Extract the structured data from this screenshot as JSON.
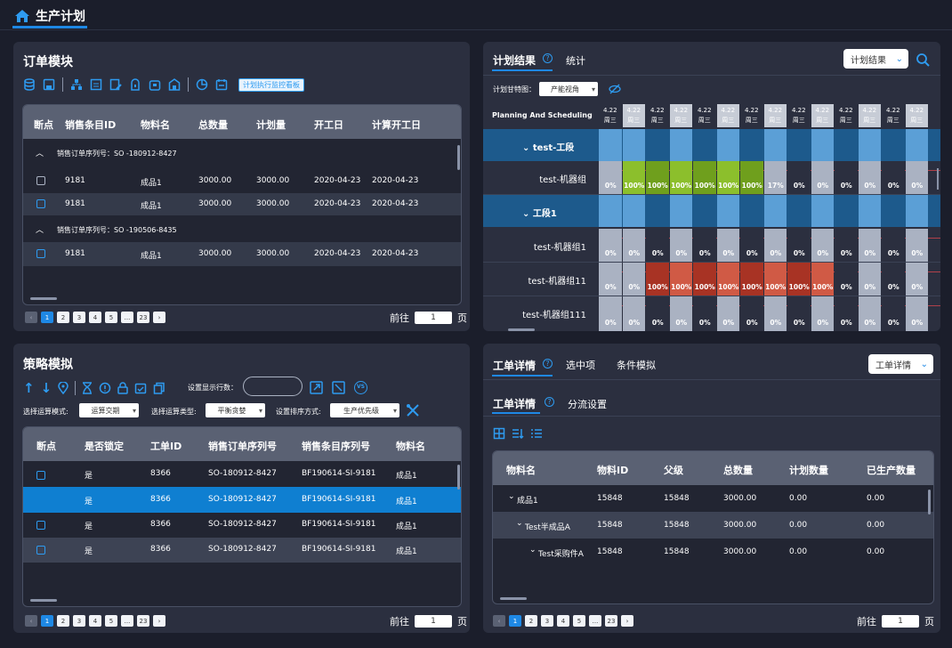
{
  "header": {
    "title": "生产计划"
  },
  "order": {
    "title": "订单模块",
    "monitor_button": "计划执行监控看板",
    "columns": [
      "断点",
      "销售条目ID",
      "物料名",
      "总数量",
      "计划量",
      "开工日",
      "计算开工日"
    ],
    "group1": "销售订单序列号：SO -180912-8427",
    "group2": "销售订单序列号：SO -190506-8435",
    "rows": [
      {
        "id": "9181",
        "mat": "成品1",
        "total": "3000.00",
        "plan": "3000.00",
        "start": "2020-04-23",
        "calc": "2020-04-23"
      },
      {
        "id": "9181",
        "mat": "成品1",
        "total": "3000.00",
        "plan": "3000.00",
        "start": "2020-04-23",
        "calc": "2020-04-23"
      },
      {
        "id": "9181",
        "mat": "成品1",
        "total": "3000.00",
        "plan": "3000.00",
        "start": "2020-04-23",
        "calc": "2020-04-23"
      }
    ],
    "pages": [
      "1",
      "2",
      "3",
      "4",
      "5",
      "...",
      "23"
    ],
    "goto_label": "前往",
    "goto_value": "1",
    "page_unit": "页"
  },
  "plan": {
    "tab1": "计划结果",
    "tab2": "统计",
    "dropdown": "计划结果",
    "gantt_label": "计划甘特图：",
    "gantt_select": "产能视角",
    "scheduling_label": "Planning And Scheduling",
    "date": "4.22",
    "weekday": "周三",
    "groups": [
      "test-工段",
      "工段1"
    ],
    "rows": [
      {
        "name": "test-机器组",
        "vals": [
          "0%",
          "100%",
          "100%",
          "100%",
          "100%",
          "100%",
          "100%",
          "17%",
          "0%",
          "0%",
          "0%",
          "0%",
          "0%",
          "0%"
        ]
      },
      {
        "name": "test-机器组1",
        "vals": [
          "0%",
          "0%",
          "0%",
          "0%",
          "0%",
          "0%",
          "0%",
          "0%",
          "0%",
          "0%",
          "0%",
          "0%",
          "0%",
          "0%"
        ]
      },
      {
        "name": "test-机器组11",
        "vals": [
          "0%",
          "0%",
          "100%",
          "100%",
          "100%",
          "100%",
          "100%",
          "100%",
          "100%",
          "100%",
          "0%",
          "0%",
          "0%",
          "0%"
        ]
      },
      {
        "name": "test-机器组111",
        "vals": [
          "0%",
          "0%",
          "0%",
          "0%",
          "0%",
          "0%",
          "0%",
          "0%",
          "0%",
          "0%",
          "0%",
          "0%",
          "0%",
          "0%"
        ]
      }
    ]
  },
  "strategy": {
    "title": "策略模拟",
    "rows_label": "设置显示行数：",
    "mode_label": "选择运算模式:",
    "mode_value": "运算交期",
    "type_label": "选择运算类型:",
    "type_value": "平衡贪婪",
    "sort_label": "设置排序方式:",
    "sort_value": "生产优先级",
    "columns": [
      "断点",
      "是否锁定",
      "工单ID",
      "销售订单序列号",
      "销售条目序列号",
      "物料名"
    ],
    "rows": [
      {
        "lock": "是",
        "wo": "8366",
        "so": "SO-180912-8427",
        "item": "BF190614-SI-9181",
        "mat": "成品1"
      },
      {
        "lock": "是",
        "wo": "8366",
        "so": "SO-180912-8427",
        "item": "BF190614-SI-9181",
        "mat": "成品1"
      },
      {
        "lock": "是",
        "wo": "8366",
        "so": "SO-180912-8427",
        "item": "BF190614-SI-9181",
        "mat": "成品1"
      },
      {
        "lock": "是",
        "wo": "8366",
        "so": "SO-180912-8427",
        "item": "BF190614-SI-9181",
        "mat": "成品1"
      }
    ],
    "pages": [
      "1",
      "2",
      "3",
      "4",
      "5",
      "...",
      "23"
    ],
    "goto_label": "前往",
    "goto_value": "1",
    "page_unit": "页"
  },
  "workorder": {
    "tab1": "工单详情",
    "tab2": "选中项",
    "tab3": "条件模拟",
    "dropdown": "工单详情",
    "sub1": "工单详情",
    "sub2": "分流设置",
    "columns": [
      "物料名",
      "物料ID",
      "父级",
      "总数量",
      "计划数量",
      "已生产数量"
    ],
    "rows": [
      {
        "name": "成品1",
        "id": "15848",
        "parent": "15848",
        "total": "3000.00",
        "plan": "0.00",
        "done": "0.00"
      },
      {
        "name": "Test半成品A",
        "id": "15848",
        "parent": "15848",
        "total": "3000.00",
        "plan": "0.00",
        "done": "0.00"
      },
      {
        "name": "Test采购件A",
        "id": "15848",
        "parent": "15848",
        "total": "3000.00",
        "plan": "0.00",
        "done": "0.00"
      }
    ],
    "pages": [
      "1",
      "2",
      "3",
      "4",
      "5",
      "...",
      "23"
    ],
    "goto_label": "前往",
    "goto_value": "1",
    "page_unit": "页"
  },
  "colors": {
    "accent": "#1e88e5",
    "green": "#6f9f1d",
    "red": "#a83324",
    "selected": "#0f7fd1"
  }
}
